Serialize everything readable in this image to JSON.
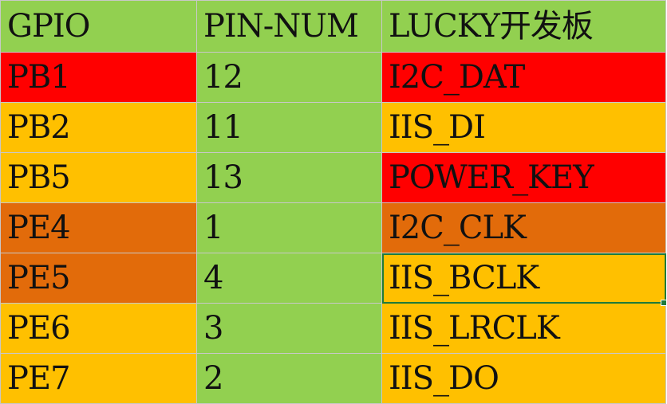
{
  "colors": {
    "green": "#92d050",
    "red": "#ff0000",
    "yellow": "#ffc000",
    "orange": "#e26b0a"
  },
  "header": [
    "GPIO",
    "PIN-NUM",
    "LUCKY开发板"
  ],
  "header_color": "#92d050",
  "rows": [
    {
      "gpio": "PB1",
      "pin": "12",
      "func": "I2C_DAT",
      "gpio_color": "#ff0000",
      "pin_color": "#92d050",
      "func_color": "#ff0000"
    },
    {
      "gpio": "PB2",
      "pin": "11",
      "func": "IIS_DI",
      "gpio_color": "#ffc000",
      "pin_color": "#92d050",
      "func_color": "#ffc000"
    },
    {
      "gpio": "PB5",
      "pin": "13",
      "func": "POWER_KEY",
      "gpio_color": "#ffc000",
      "pin_color": "#92d050",
      "func_color": "#ff0000"
    },
    {
      "gpio": "PE4",
      "pin": "1",
      "func": "I2C_CLK",
      "gpio_color": "#e26b0a",
      "pin_color": "#92d050",
      "func_color": "#e26b0a"
    },
    {
      "gpio": "PE5",
      "pin": "4",
      "func": "IIS_BCLK",
      "gpio_color": "#e26b0a",
      "pin_color": "#92d050",
      "func_color": "#ffc000"
    },
    {
      "gpio": "PE6",
      "pin": "3",
      "func": "IIS_LRCLK",
      "gpio_color": "#ffc000",
      "pin_color": "#92d050",
      "func_color": "#ffc000"
    },
    {
      "gpio": "PE7",
      "pin": "2",
      "func": "IIS_DO",
      "gpio_color": "#ffc000",
      "pin_color": "#92d050",
      "func_color": "#ffc000"
    }
  ]
}
